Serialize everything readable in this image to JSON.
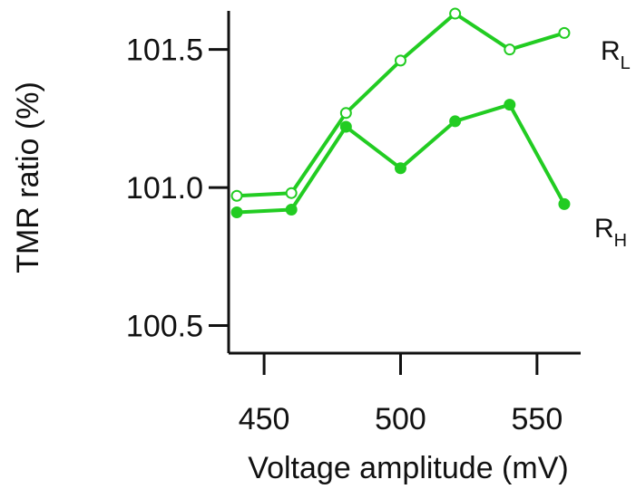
{
  "chart_data": {
    "type": "line",
    "xlabel": "Voltage amplitude (mV)",
    "ylabel": "TMR ratio (%)",
    "x": [
      440,
      460,
      480,
      500,
      520,
      540,
      560
    ],
    "xticks": [
      450,
      500,
      550
    ],
    "xtick_labels": [
      "450",
      "500",
      "550"
    ],
    "yticks": [
      100.5,
      101.0,
      101.5
    ],
    "ytick_labels": [
      "100.5",
      "101.0",
      "101.5"
    ],
    "xlim": [
      437,
      566
    ],
    "ylim": [
      100.4,
      101.64
    ],
    "grid": false,
    "legend": "none",
    "color": "#22cc22",
    "series": [
      {
        "name": "R",
        "subscript": "L",
        "marker": "open-circle",
        "values": [
          100.97,
          100.98,
          101.27,
          101.46,
          101.63,
          101.5,
          101.56
        ]
      },
      {
        "name": "R",
        "subscript": "H",
        "marker": "filled-circle",
        "values": [
          100.91,
          100.92,
          101.22,
          101.07,
          101.24,
          101.3,
          100.94
        ]
      }
    ]
  }
}
